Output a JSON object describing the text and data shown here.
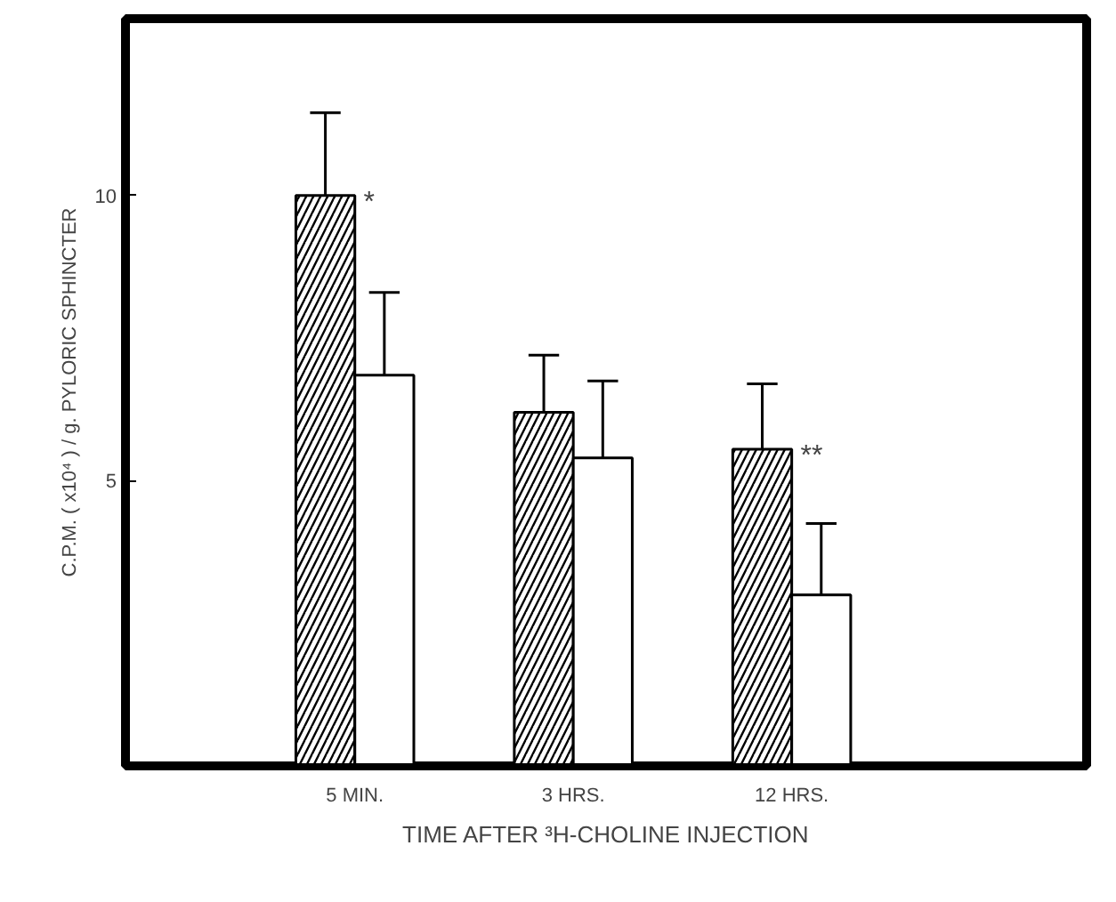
{
  "chart_data": {
    "type": "bar",
    "categories": [
      "5 MIN.",
      "3 HRS.",
      "12 HRS."
    ],
    "series": [
      {
        "color": "#000000",
        "values": [
          10.0,
          6.2,
          5.55
        ],
        "errors": [
          [
            10.0,
            11.45
          ],
          [
            6.2,
            7.2
          ],
          [
            5.55,
            6.7
          ]
        ]
      },
      {
        "color": "#ffffff",
        "values": [
          6.85,
          5.4,
          3.0
        ],
        "errors": [
          [
            6.85,
            8.3
          ],
          [
            5.4,
            6.75
          ],
          [
            3.0,
            4.25
          ]
        ]
      }
    ],
    "ylim": [
      0,
      13.1
    ],
    "yticks": [
      5,
      10
    ],
    "grid": false,
    "xlabel": "TIME AFTER ³H-CHOLINE INJECTION",
    "ylabel": "C.P.M. ( x10⁴ ) / g. PYLORIC SPHINCTER",
    "annotations": [
      {
        "text": "*",
        "x": "5 MIN.",
        "y": 10.0
      },
      {
        "text": "**",
        "x": "12 HRS.",
        "y": 5.55
      }
    ]
  }
}
